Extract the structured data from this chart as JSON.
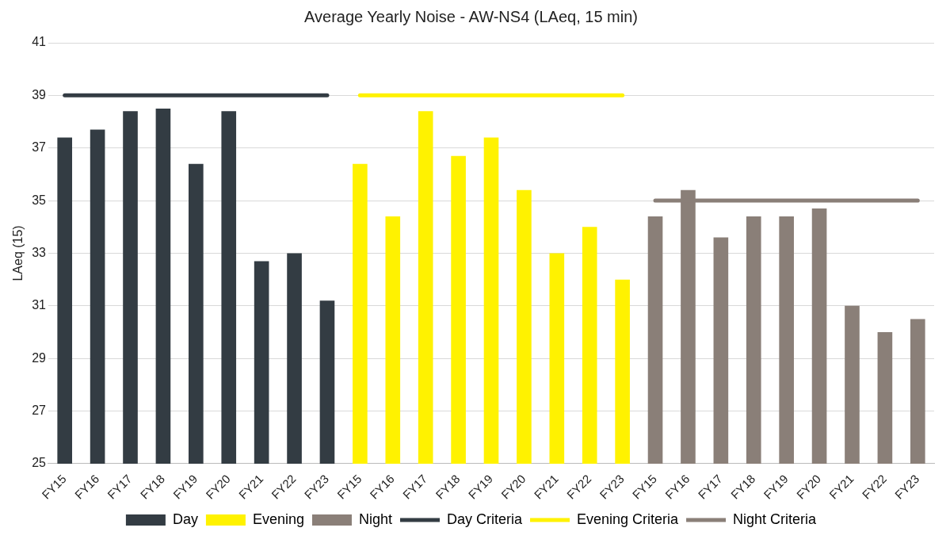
{
  "chart_data": {
    "type": "bar",
    "title": "Average Yearly Noise - AW-NS4 (LAeq, 15 min)",
    "ylabel": "LAeq (15)",
    "categories": [
      "FY15",
      "FY16",
      "FY17",
      "FY18",
      "FY19",
      "FY20",
      "FY21",
      "FY22",
      "FY23",
      "FY15",
      "FY16",
      "FY17",
      "FY18",
      "FY19",
      "FY20",
      "FY21",
      "FY22",
      "FY23",
      "FY15",
      "FY16",
      "FY17",
      "FY18",
      "FY19",
      "FY20",
      "FY21",
      "FY22",
      "FY23"
    ],
    "series": [
      {
        "name": "Day",
        "color": "#333c43",
        "values": [
          37.4,
          37.7,
          38.4,
          38.5,
          36.4,
          38.4,
          32.7,
          33.0,
          31.2,
          null,
          null,
          null,
          null,
          null,
          null,
          null,
          null,
          null,
          null,
          null,
          null,
          null,
          null,
          null,
          null,
          null,
          null
        ]
      },
      {
        "name": "Evening",
        "color": "#fff200",
        "values": [
          null,
          null,
          null,
          null,
          null,
          null,
          null,
          null,
          null,
          36.4,
          34.4,
          38.4,
          36.7,
          37.4,
          35.4,
          33.0,
          34.0,
          32.0,
          null,
          null,
          null,
          null,
          null,
          null,
          null,
          null,
          null
        ]
      },
      {
        "name": "Night",
        "color": "#8a7f78",
        "values": [
          null,
          null,
          null,
          null,
          null,
          null,
          null,
          null,
          null,
          null,
          null,
          null,
          null,
          null,
          null,
          null,
          null,
          null,
          34.4,
          35.4,
          33.6,
          34.4,
          34.4,
          34.7,
          31.0,
          30.0,
          30.5
        ]
      },
      {
        "name": "Day Criteria",
        "type": "line",
        "color": "#333c43",
        "values": [
          39,
          39,
          39,
          39,
          39,
          39,
          39,
          39,
          39,
          null,
          null,
          null,
          null,
          null,
          null,
          null,
          null,
          null,
          null,
          null,
          null,
          null,
          null,
          null,
          null,
          null,
          null
        ]
      },
      {
        "name": "Evening Criteria",
        "type": "line",
        "color": "#fff200",
        "values": [
          null,
          null,
          null,
          null,
          null,
          null,
          null,
          null,
          null,
          39,
          39,
          39,
          39,
          39,
          39,
          39,
          39,
          39,
          null,
          null,
          null,
          null,
          null,
          null,
          null,
          null,
          null
        ]
      },
      {
        "name": "Night Criteria",
        "type": "line",
        "color": "#8a7f78",
        "values": [
          null,
          null,
          null,
          null,
          null,
          null,
          null,
          null,
          null,
          null,
          null,
          null,
          null,
          null,
          null,
          null,
          null,
          null,
          35,
          35,
          35,
          35,
          35,
          35,
          35,
          35,
          35
        ]
      }
    ],
    "ylim": [
      25,
      41
    ],
    "yticks": [
      25,
      27,
      29,
      31,
      33,
      35,
      37,
      39,
      41
    ],
    "grid": "y",
    "legend": "bottom",
    "marker": "none",
    "line_style": "solid"
  }
}
